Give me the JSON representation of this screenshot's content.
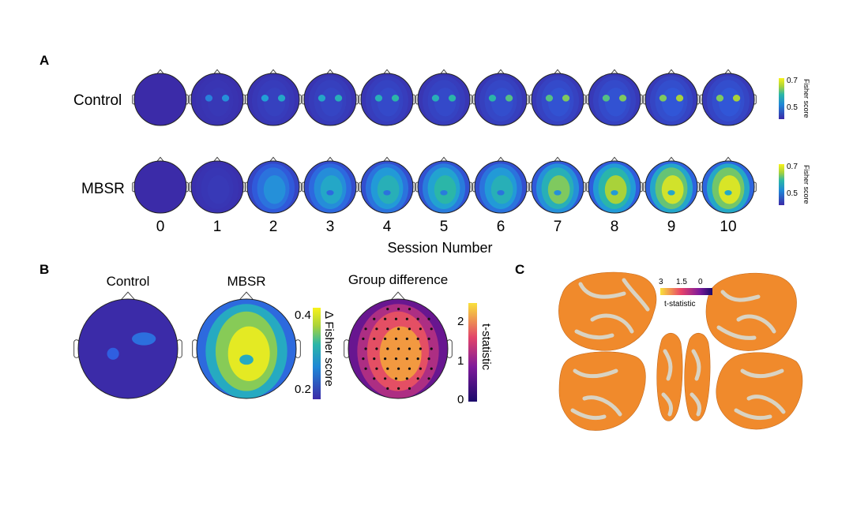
{
  "panels": {
    "A": {
      "letter": "A",
      "rows": [
        {
          "label": "Control",
          "levels": [
            0.0,
            0.15,
            0.25,
            0.3,
            0.35,
            0.35,
            0.4,
            0.45,
            0.45,
            0.5,
            0.5
          ]
        },
        {
          "label": "MBSR",
          "levels": [
            0.0,
            0.08,
            0.45,
            0.55,
            0.6,
            0.65,
            0.6,
            0.75,
            0.8,
            0.9,
            0.92
          ]
        }
      ],
      "sessions": [
        "0",
        "1",
        "2",
        "3",
        "4",
        "5",
        "6",
        "7",
        "8",
        "9",
        "10"
      ],
      "xlabel": "Session Number",
      "colorbar": {
        "label": "Fisher score",
        "ticks": [
          "0.7",
          "0.5"
        ]
      }
    },
    "B": {
      "letter": "B",
      "maps": [
        {
          "title": "Control",
          "level": 0.1
        },
        {
          "title": "MBSR",
          "level": 0.85
        },
        {
          "title": "Group difference",
          "level": 0.8
        }
      ],
      "colorbar1": {
        "label": "Δ Fisher score",
        "ticks": [
          "0.4",
          "0.2"
        ]
      },
      "colorbar2": {
        "label": "t-statistic",
        "ticks": [
          "2",
          "1",
          "0"
        ]
      }
    },
    "C": {
      "letter": "C",
      "colorbar": {
        "label": "t-statistic",
        "ticks": [
          "3",
          "1.5",
          "0"
        ]
      }
    }
  },
  "colors": {
    "fisher_low": "#3d2fa8",
    "fisher_mid": "#27b6b4",
    "fisher_high": "#f8f21b",
    "tstat_low": "#1a0a6b",
    "tstat_mid": "#c8287c",
    "tstat_high": "#f7e23a",
    "brain_gray": "#d9d3c3",
    "brain_orange": "#f08a2c"
  }
}
